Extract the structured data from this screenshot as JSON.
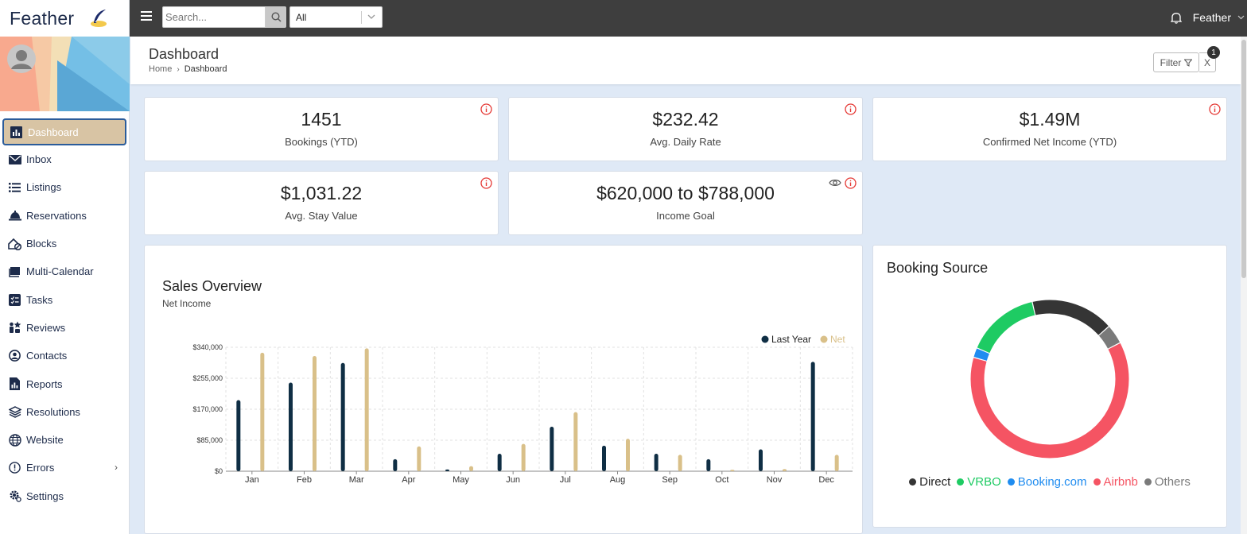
{
  "brand": {
    "name": "Feather"
  },
  "topbar": {
    "search_placeholder": "Search...",
    "filter_select": "All",
    "user_name": "Feather"
  },
  "sidebar": {
    "items": [
      {
        "label": "Dashboard",
        "icon": "chart-icon",
        "active": true
      },
      {
        "label": "Inbox",
        "icon": "envelope-icon"
      },
      {
        "label": "Listings",
        "icon": "list-icon"
      },
      {
        "label": "Reservations",
        "icon": "bell-service-icon"
      },
      {
        "label": "Blocks",
        "icon": "house-block-icon"
      },
      {
        "label": "Multi-Calendar",
        "icon": "book-icon"
      },
      {
        "label": "Tasks",
        "icon": "task-icon"
      },
      {
        "label": "Reviews",
        "icon": "review-icon"
      },
      {
        "label": "Contacts",
        "icon": "contact-icon"
      },
      {
        "label": "Reports",
        "icon": "report-icon"
      },
      {
        "label": "Resolutions",
        "icon": "layers-icon"
      },
      {
        "label": "Website",
        "icon": "globe-icon"
      },
      {
        "label": "Errors",
        "icon": "alert-circle-icon",
        "has_submenu": true
      },
      {
        "label": "Settings",
        "icon": "gear-icon"
      }
    ]
  },
  "header": {
    "title": "Dashboard",
    "breadcrumb": [
      "Home",
      "Dashboard"
    ],
    "filter_label": "Filter",
    "clear_label": "X",
    "filter_count": "1"
  },
  "kpis": [
    {
      "value": "1451",
      "label": "Bookings (YTD)"
    },
    {
      "value": "$232.42",
      "label": "Avg. Daily Rate"
    },
    {
      "value": "$1.49M",
      "label": "Confirmed Net Income (YTD)"
    },
    {
      "value": "$1,031.22",
      "label": "Avg. Stay Value"
    },
    {
      "value": "$620,000 to $788,000",
      "label": "Income Goal"
    }
  ],
  "sales": {
    "title": "Sales Overview",
    "subtitle": "Net Income"
  },
  "booking_source": {
    "title": "Booking Source"
  },
  "colors": {
    "last_year": "#0f2e44",
    "net": "#d9c089",
    "direct": "#353535",
    "vrbo": "#1ecb63",
    "booking_com": "#1f8cf0",
    "airbnb": "#f55463",
    "others": "#7a7a7a",
    "active_nav": "#d8c4a4",
    "alert_red": "#e53935"
  },
  "chart_data": [
    {
      "type": "bar",
      "categories": [
        "Jan",
        "Feb",
        "Mar",
        "Apr",
        "May",
        "Jun",
        "Jul",
        "Aug",
        "Sep",
        "Oct",
        "Nov",
        "Dec"
      ],
      "series": [
        {
          "name": "Last Year",
          "values": [
            195000,
            243000,
            297000,
            33000,
            5000,
            48000,
            122000,
            70000,
            48000,
            33000,
            60000,
            300000
          ]
        },
        {
          "name": "Net",
          "values": [
            325000,
            316000,
            337000,
            68000,
            14000,
            75000,
            162000,
            89000,
            45000,
            4000,
            6000,
            45000
          ]
        }
      ],
      "ylim": [
        0,
        340000
      ],
      "yticks": [
        "$0",
        "$85,000",
        "$170,000",
        "$255,000",
        "$340,000"
      ],
      "grid": true,
      "legend": "top-right"
    },
    {
      "type": "pie",
      "donut": true,
      "labels": [
        "Direct",
        "VRBO",
        "Booking.com",
        "Airbnb",
        "Others"
      ],
      "values": [
        17,
        15,
        2,
        62,
        4
      ],
      "legend": "bottom"
    }
  ]
}
